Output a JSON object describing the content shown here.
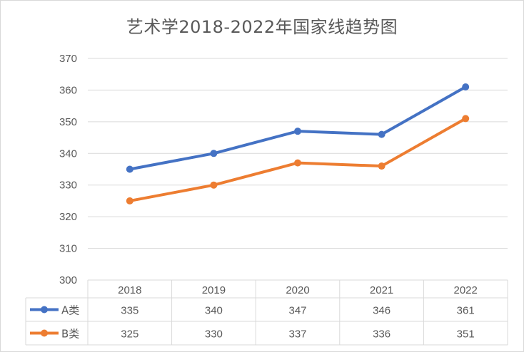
{
  "chart_data": {
    "type": "line",
    "title": "艺术学2018-2022年国家线趋势图",
    "categories": [
      "2018",
      "2019",
      "2020",
      "2021",
      "2022"
    ],
    "series": [
      {
        "name": "A类",
        "values": [
          335,
          340,
          347,
          346,
          361
        ],
        "color": "#4472C4"
      },
      {
        "name": "B类",
        "values": [
          325,
          330,
          337,
          336,
          351
        ],
        "color": "#ED7D31"
      }
    ],
    "yticks": [
      300,
      310,
      320,
      330,
      340,
      350,
      360,
      370
    ],
    "ylim": [
      300,
      370
    ],
    "grid": true,
    "legend": "data-table",
    "xlabel": "",
    "ylabel": ""
  }
}
